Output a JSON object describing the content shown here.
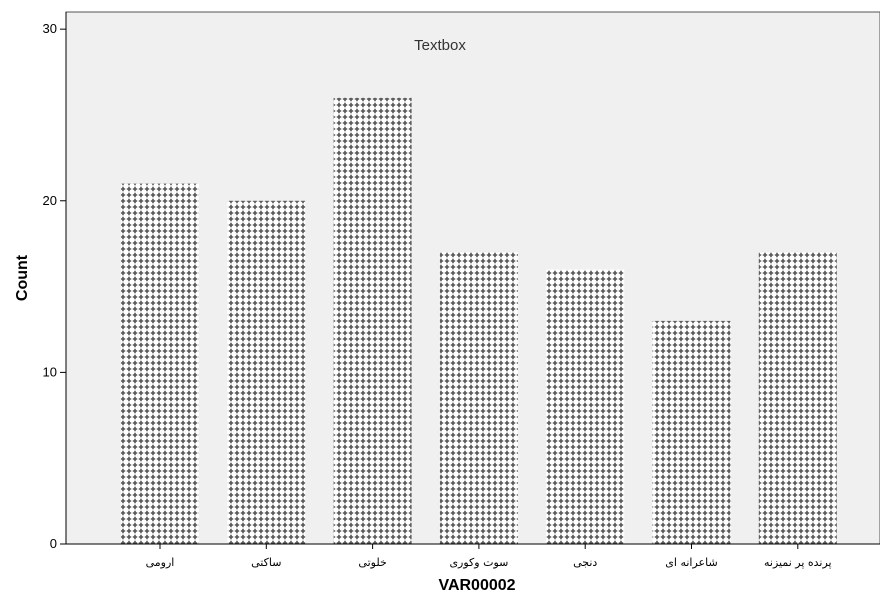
{
  "chart_data": {
    "type": "bar",
    "title": "",
    "annotation": "Textbox",
    "xlabel": "VAR00002",
    "ylabel": "Count",
    "categories": [
      "ارومی",
      "ساکتی",
      "خلوتی",
      "سوت وکوری",
      "دنجی",
      "شاعرانه ای",
      "پرنده پر نمیزنه"
    ],
    "values": [
      21,
      20,
      26,
      17,
      16,
      13,
      17
    ],
    "ylim": [
      0,
      31
    ],
    "yticks": [
      0,
      10,
      20,
      30
    ],
    "grid": false,
    "bar_pattern": "plus-crosshatch",
    "colors": {
      "plot_background": "#f0f0f0",
      "bar_fill": "#ffffff",
      "bar_pattern": "#555555",
      "axis": "#000000"
    }
  }
}
